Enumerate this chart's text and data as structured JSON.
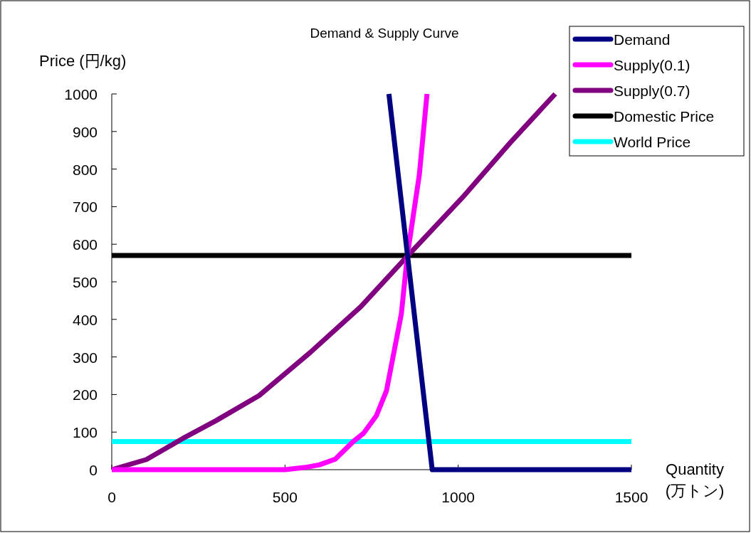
{
  "chart_data": {
    "type": "line",
    "title": "Demand & Supply Curve",
    "xlabel": "Quantity\n(万トン)",
    "ylabel": "Price (円/kg)",
    "xlim": [
      0,
      1500
    ],
    "xticks": [
      0,
      500,
      1000,
      1500
    ],
    "ylim": [
      0,
      1000
    ],
    "yticks": [
      0,
      100,
      200,
      300,
      400,
      500,
      600,
      700,
      800,
      900,
      1000
    ],
    "grid": false,
    "legend": "top right",
    "marker": "none",
    "line_style": "solid",
    "series": [
      {
        "name": "Demand",
        "color": "#000080",
        "x": [
          800,
          925,
          1500
        ],
        "values": [
          1000,
          0,
          0
        ]
      },
      {
        "name": "Supply(0.1)",
        "color": "#ff00ff",
        "x": [
          0,
          300,
          500,
          559,
          600,
          645,
          697,
          727,
          764,
          793,
          836,
          853,
          888,
          910
        ],
        "values": [
          0,
          0,
          0,
          6,
          13,
          28,
          75,
          97,
          144,
          210,
          415,
          568,
          786,
          1000
        ]
      },
      {
        "name": "Supply(0.7)",
        "color": "#800080",
        "x": [
          0,
          100,
          205,
          300,
          425,
          573,
          719,
          853,
          1013,
          1150,
          1280
        ],
        "values": [
          0,
          27,
          83,
          130,
          197,
          312,
          434,
          568,
          725,
          870,
          1000
        ]
      },
      {
        "name": "Domestic Price",
        "color": "#000000",
        "x": [
          0,
          1500
        ],
        "values": [
          570,
          570
        ]
      },
      {
        "name": "World Price",
        "color": "#00ffff",
        "x": [
          0,
          1500
        ],
        "values": [
          75,
          75
        ]
      }
    ]
  }
}
